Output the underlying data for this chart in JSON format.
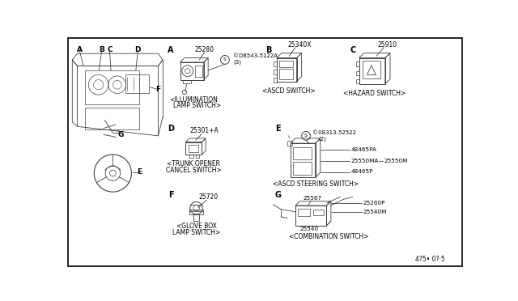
{
  "bg_color": "#ffffff",
  "border_color": "#000000",
  "line_color": "#404040",
  "text_color": "#000000",
  "fig_width": 6.4,
  "fig_height": 3.72,
  "dpi": 100,
  "bottom_code": "4?5·02·5",
  "sections": [
    "A",
    "B",
    "C",
    "D",
    "E",
    "F",
    "G"
  ],
  "illum_num": "25280",
  "illum_screw": "©D8543-5122A",
  "illum_screw2": "(3)",
  "illum_label1": "<ILLUMINATION",
  "illum_label2": "LAMP SWITCH>",
  "ascd_num": "25340X",
  "ascd_label": "<ASCD SWITCH>",
  "hazard_num": "25910",
  "hazard_label": "<HAZARD SWITCH>",
  "trunk_num": "25301+A",
  "trunk_label1": "<TRUNK OPENER",
  "trunk_label2": "CANCEL SWITCH>",
  "steer_screw": "©08313-52522",
  "steer_screw2": "(2)",
  "steer_p1": "48465PA",
  "steer_p2": "25550MA",
  "steer_p3": "48465P",
  "steer_p4": "25550M",
  "steer_label": "<ASCD STEERING SWITCH>",
  "glove_num": "25720",
  "glove_label1": "<GLOVE BOX",
  "glove_label2": "LAMP SWITCH>",
  "combo_p1": "25260P",
  "combo_p2": "25567",
  "combo_p3": "25540M",
  "combo_p4": "25540",
  "combo_label": "<COMBINATION SWITCH>",
  "ref_code": "4?5• 0?·5"
}
